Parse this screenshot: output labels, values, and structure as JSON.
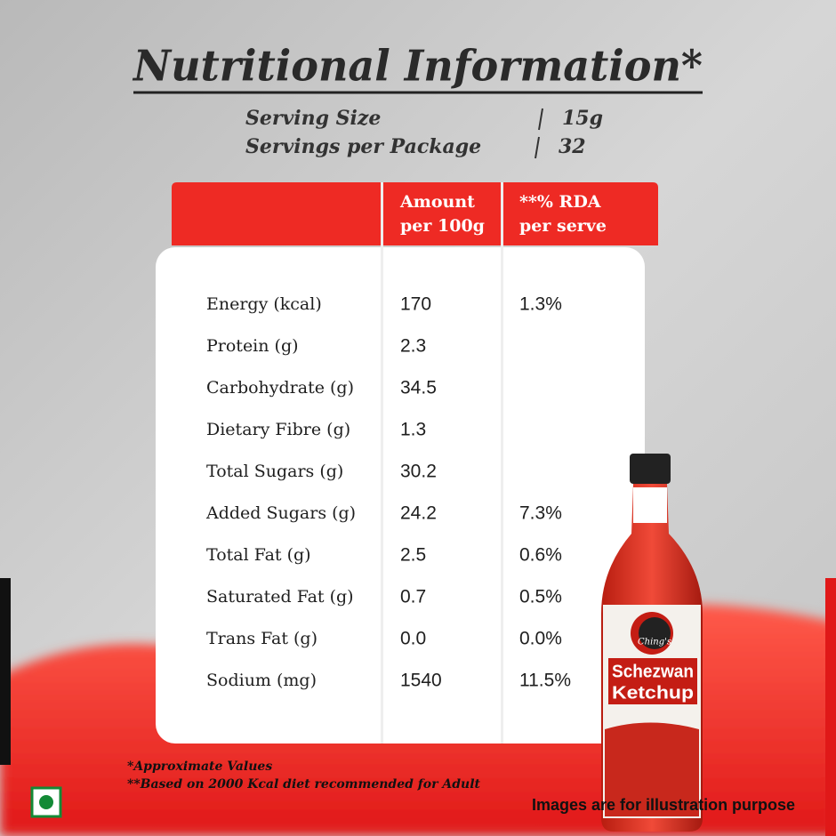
{
  "header": {
    "title": "Nutritional Information*",
    "serving": [
      {
        "label": "Serving Size",
        "value": "15g"
      },
      {
        "label": "Servings per Package",
        "value": "32"
      }
    ]
  },
  "table": {
    "columns": [
      [
        "Amount",
        "per 100g"
      ],
      [
        "**% RDA",
        "per serve"
      ]
    ],
    "rows": [
      [
        "Energy (kcal)",
        "170",
        "1.3%"
      ],
      [
        "Protein (g)",
        "2.3"
      ],
      [
        "Carbohydrate (g)",
        "34.5"
      ],
      [
        "Dietary Fibre (g)",
        "1.3"
      ],
      [
        "Total Sugars (g)",
        "30.2"
      ],
      [
        "Added Sugars (g)",
        "24.2",
        "7.3%"
      ],
      [
        "Total Fat (g)",
        "2.5",
        "0.6%"
      ],
      [
        "Saturated Fat (g)",
        "0.7",
        "0.5%"
      ],
      [
        "Trans Fat (g)",
        "0.0",
        "0.0%"
      ],
      [
        "Sodium (mg)",
        "1540",
        "11.5%"
      ]
    ]
  },
  "footnotes": [
    "*Approximate Values",
    "**Based on 2000 Kcal diet recommended for Adult"
  ],
  "product": {
    "brand": "Ching's",
    "name": [
      "Schezwan",
      "Ketchup"
    ]
  },
  "disclaimer": "Images are for illustration purpose"
}
